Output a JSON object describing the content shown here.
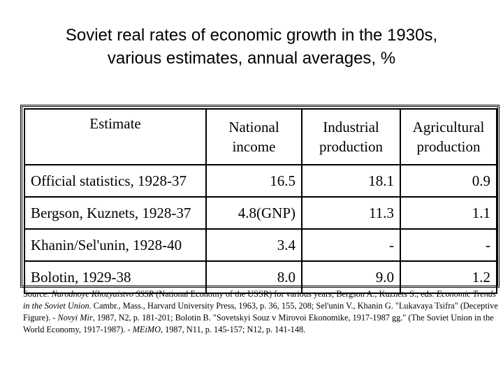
{
  "title": {
    "line1": "Soviet real rates of economic growth in the 1930s,",
    "line2": "various estimates, annual averages, %"
  },
  "table": {
    "headers": {
      "estimate": "Estimate",
      "national_income": [
        "National",
        "income"
      ],
      "industrial_production": [
        "Industrial",
        "production"
      ],
      "agricultural_production": [
        "Agricultural",
        "production"
      ]
    },
    "rows": [
      {
        "estimate": "Official statistics, 1928-37",
        "national_income": "16.5",
        "industrial_production": "18.1",
        "agricultural_production": "0.9"
      },
      {
        "estimate": "Bergson, Kuznets, 1928-37",
        "national_income": "4.8(GNP)",
        "industrial_production": "11.3",
        "agricultural_production": "1.1"
      },
      {
        "estimate": "Khanin/Sel'unin, 1928-40",
        "national_income": "3.4",
        "industrial_production": "-",
        "agricultural_production": "-"
      },
      {
        "estimate": "Bolotin, 1929-38",
        "national_income": "8.0",
        "industrial_production": "9.0",
        "agricultural_production": "1.2"
      }
    ]
  },
  "source": {
    "s1": "Source: ",
    "s2": "Narodnoye Khozyaistvo SSSR",
    "s3": " (National Economy of the USSR) for various years; Bergson A., Kuznets S., eds. ",
    "s4": "Economic Trends in the Soviet Union",
    "s5": ". Cambr., Mass., Harvard University Press, 1963, p. 36, 155, 208; Sel'unin V., Khanin G. \"Lukavaya Tsifra\" (Deceptive Figure). - ",
    "s6": "Novyi Mir",
    "s7": ", 1987, N2, p. 181-201; Bolotin B. \"Sovetskyi Souz v Mirovoi Ekonomike, 1917-1987 gg.\" (The Soviet Union in the World Economy, 1917-1987). - ",
    "s8": "MEiMO",
    "s9": ", 1987, N11, p. 145-157; N12, p. 141-148."
  }
}
